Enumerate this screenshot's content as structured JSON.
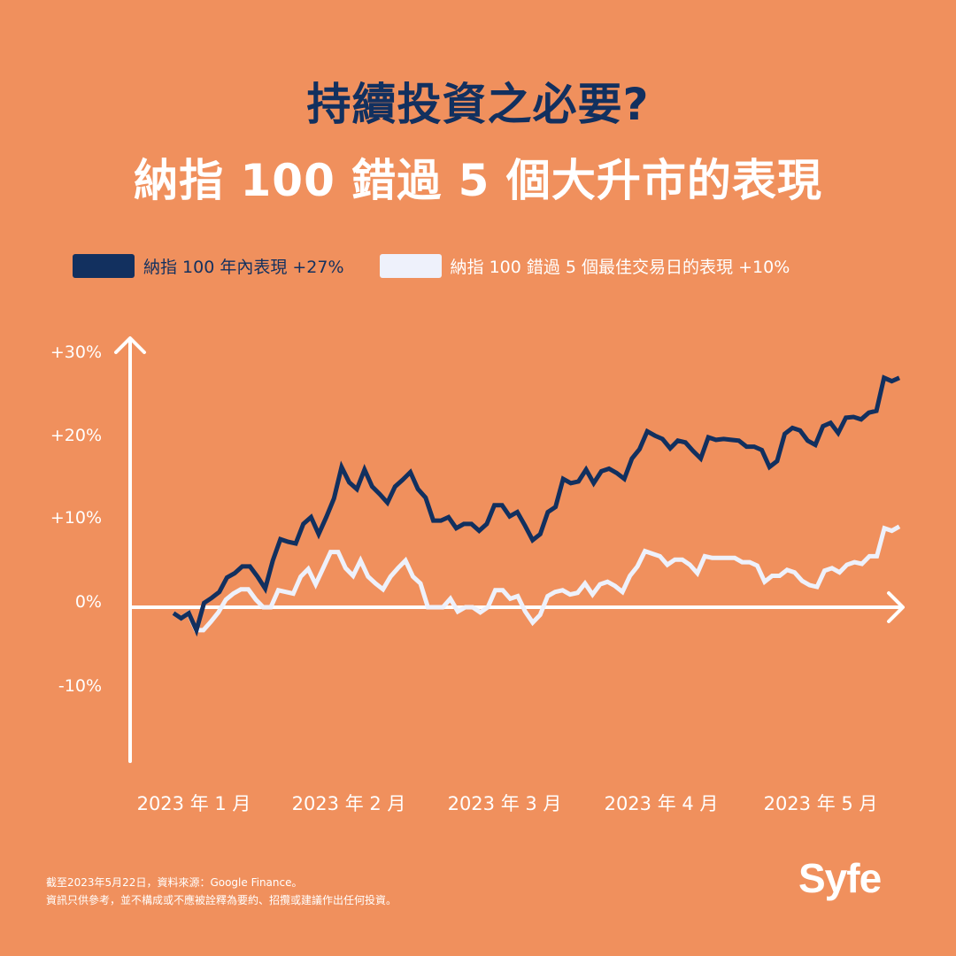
{
  "header": {
    "title_line1": "持續投資之必要?",
    "title_line2": "納指 100 錯過 5 個大升市的表現"
  },
  "legend": {
    "items": [
      {
        "label": "納指 100 年內表現 +27%",
        "color": "#12305F"
      },
      {
        "label": "納指 100 錯過 5 個最佳交易日的表現 +10%",
        "color": "#EEF1FB"
      }
    ]
  },
  "axes": {
    "y_ticks": [
      "+30%",
      "+20%",
      "+10%",
      "0%",
      "-10%"
    ],
    "x_ticks": [
      "2023 年 1 月",
      "2023 年 2 月",
      "2023 年 3 月",
      "2023 年 4 月",
      "2023 年 5 月"
    ]
  },
  "colors": {
    "background": "#F0905D",
    "primary_series": "#12305F",
    "secondary_series": "#EEF1FB",
    "axis": "#FFFFFF"
  },
  "footnote": {
    "line1": "截至2023年5月22日，資料來源：Google Finance。",
    "line2": "資訊只供參考，並不構成或不應被詮釋為要約、招攬或建議作出任何投資。"
  },
  "brand": {
    "logo_text": "Syfe"
  },
  "chart_data": {
    "type": "line",
    "title": "持續投資之必要? 納指 100 錯過 5 個大升市的表現",
    "xlabel": "",
    "ylabel": "",
    "ylim": [
      -18,
      31
    ],
    "y_ticks": [
      30,
      20,
      10,
      0,
      -10
    ],
    "x_tick_labels": [
      "2023 年 1 月",
      "2023 年 2 月",
      "2023 年 3 月",
      "2023 年 4 月",
      "2023 年 5 月"
    ],
    "grid": false,
    "legend_position": "top",
    "series": [
      {
        "name": "納指 100 年內表現 +27%",
        "color": "#12305F",
        "final_value": 27,
        "values": [
          -0.7,
          -1.3,
          -0.7,
          -2.7,
          0.5,
          1.1,
          1.8,
          3.5,
          4.0,
          4.8,
          4.8,
          3.6,
          2.2,
          5.5,
          8.0,
          7.7,
          7.5,
          9.8,
          10.6,
          8.6,
          10.6,
          12.8,
          16.5,
          14.7,
          13.9,
          16.2,
          14.2,
          13.3,
          12.3,
          14.2,
          15.0,
          15.9,
          13.9,
          12.9,
          10.2,
          10.2,
          10.6,
          9.3,
          9.8,
          9.8,
          9.0,
          9.8,
          12.0,
          12.0,
          10.7,
          11.2,
          9.6,
          7.9,
          8.6,
          11.2,
          11.8,
          15.1,
          14.6,
          14.8,
          16.2,
          14.6,
          16.0,
          16.3,
          15.8,
          15.1,
          17.5,
          18.6,
          20.7,
          20.2,
          19.8,
          18.7,
          19.6,
          19.4,
          18.4,
          17.5,
          20.0,
          19.7,
          19.8,
          19.7,
          19.6,
          18.9,
          18.9,
          18.5,
          16.5,
          17.2,
          20.4,
          21.1,
          20.8,
          19.6,
          19.1,
          21.3,
          21.7,
          20.5,
          22.3,
          22.4,
          22.1,
          22.9,
          23.1,
          27.0,
          26.6,
          27.0
        ]
      },
      {
        "name": "納指 100 錯過 5 個最佳交易日的表現 +10%",
        "color": "#EEF1FB",
        "final_value": 10,
        "values": [
          -0.7,
          -1.3,
          -0.7,
          -2.7,
          -2.7,
          -1.7,
          -0.6,
          0.9,
          1.6,
          2.1,
          2.1,
          0.9,
          0.0,
          0.0,
          2.0,
          1.8,
          1.6,
          3.6,
          4.5,
          2.7,
          4.6,
          6.5,
          6.5,
          4.6,
          3.7,
          5.5,
          3.6,
          2.8,
          2.1,
          3.6,
          4.6,
          5.5,
          3.6,
          2.8,
          0.0,
          0.0,
          0.0,
          1.0,
          -0.5,
          0.0,
          0.0,
          -0.6,
          0.0,
          2.0,
          2.0,
          1.0,
          1.3,
          -0.5,
          -1.8,
          -0.9,
          1.3,
          1.8,
          2.0,
          1.5,
          1.7,
          2.8,
          1.5,
          2.7,
          3.0,
          2.5,
          1.8,
          3.7,
          4.8,
          6.6,
          6.3,
          6.0,
          5.0,
          5.6,
          5.6,
          5.0,
          4.0,
          6.0,
          5.8,
          5.8,
          5.8,
          5.8,
          5.3,
          5.3,
          4.9,
          3.0,
          3.7,
          3.7,
          4.4,
          4.1,
          3.1,
          2.6,
          2.4,
          4.3,
          4.6,
          4.1,
          5.0,
          5.3,
          5.1,
          6.0,
          6.0,
          9.3,
          9.0,
          9.5
        ]
      }
    ]
  }
}
